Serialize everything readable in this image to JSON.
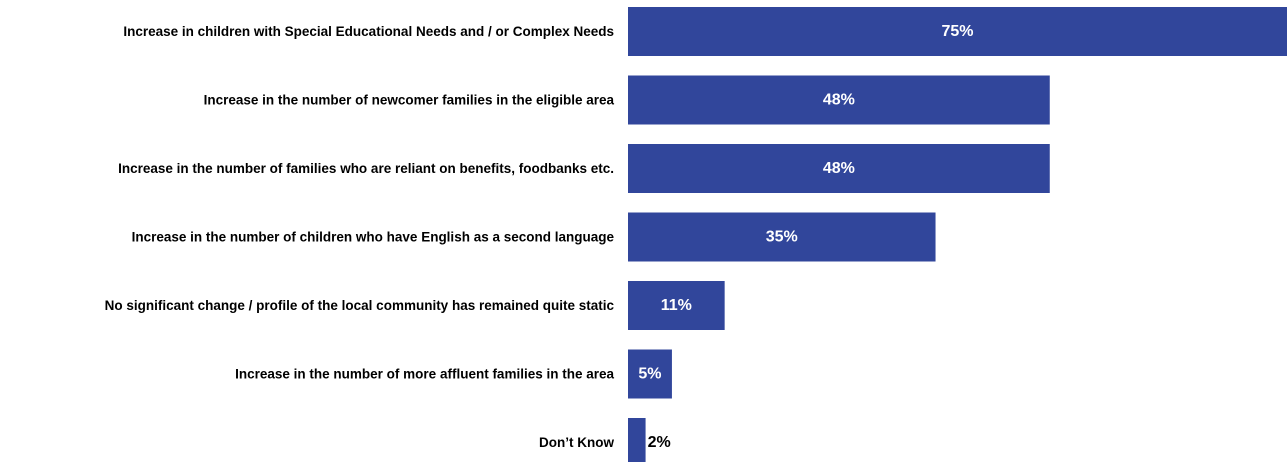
{
  "chart_data": {
    "type": "bar",
    "orientation": "horizontal",
    "categories": [
      "Increase in children with Special Educational Needs and / or Complex Needs",
      "Increase in the number of newcomer families in the eligible area",
      "Increase in the number of families who are reliant on benefits, foodbanks etc.",
      "Increase in the number of children who have English as a second language",
      "No significant change / profile of the local community has remained quite static",
      "Increase in the number of more affluent families in the area",
      "Don’t Know"
    ],
    "values": [
      75,
      48,
      48,
      35,
      11,
      5,
      2
    ],
    "value_labels": [
      "75%",
      "48%",
      "48%",
      "35%",
      "11%",
      "5%",
      "2%"
    ],
    "unit": "%",
    "xlim": [
      0,
      75
    ],
    "grid": false,
    "legend": "none",
    "colors": {
      "bar": "#31469B",
      "label_inside": "#FFFFFF",
      "label_outside": "#000000",
      "text": "#000000"
    }
  }
}
